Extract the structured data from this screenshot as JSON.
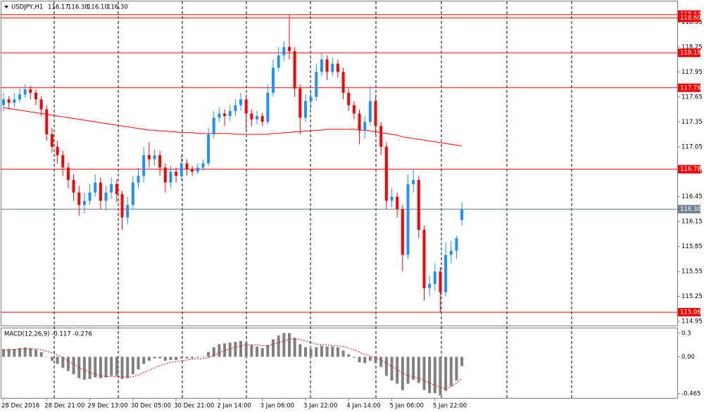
{
  "chart_data": {
    "type": "candlestick",
    "header": {
      "symbol": "USDJPY,H1",
      "ohlc": [
        "116.17",
        "116.38",
        "116.10",
        "116.30"
      ]
    },
    "categories": [
      "28 Dec 2016",
      null,
      null,
      null,
      null,
      null,
      null,
      null,
      "28 Dec 21:00",
      null,
      null,
      null,
      null,
      null,
      null,
      null,
      "29 Dec 13:00",
      null,
      null,
      null,
      null,
      null,
      null,
      null,
      "30 Dec 05:00",
      null,
      null,
      null,
      null,
      null,
      null,
      null,
      "30 Dec 21:00",
      null,
      null,
      null,
      null,
      null,
      null,
      null,
      "2 Jan 14:00",
      null,
      null,
      null,
      null,
      null,
      null,
      null,
      "3 Jan 06:00",
      null,
      null,
      null,
      null,
      null,
      null,
      null,
      "3 Jan 22:00",
      null,
      null,
      null,
      null,
      null,
      null,
      null,
      "4 Jan 14:00",
      null,
      null,
      null,
      null,
      null,
      null,
      null,
      "5 Jan 06:00",
      null,
      null,
      null,
      null,
      null,
      null,
      null,
      "5 Jan 22:00",
      null,
      null,
      null,
      null,
      null
    ],
    "candles": {
      "open": [
        117.55,
        117.62,
        117.58,
        117.62,
        117.68,
        117.74,
        117.7,
        117.62,
        117.5,
        117.2,
        117.05,
        116.95,
        116.8,
        116.65,
        116.5,
        116.35,
        116.4,
        116.5,
        116.62,
        116.4,
        116.5,
        116.6,
        116.48,
        116.2,
        116.35,
        116.62,
        116.7,
        116.95,
        116.9,
        116.95,
        116.8,
        116.62,
        116.75,
        116.7,
        116.85,
        116.78,
        116.75,
        116.8,
        116.85,
        117.2,
        117.4,
        117.45,
        117.42,
        117.48,
        117.55,
        117.62,
        117.45,
        117.38,
        117.42,
        117.35,
        117.7,
        118.0,
        118.15,
        118.25,
        118.2,
        117.75,
        117.4,
        117.6,
        117.65,
        117.95,
        118.1,
        117.95,
        118.05,
        117.95,
        117.7,
        117.55,
        117.45,
        117.25,
        117.35,
        117.6,
        117.3,
        117.05,
        116.4,
        116.45,
        116.3,
        115.75,
        116.6,
        116.65,
        116.05,
        115.35,
        115.4,
        115.55,
        115.3,
        115.75,
        115.8,
        116.17
      ],
      "high": [
        117.7,
        117.66,
        117.7,
        117.75,
        117.8,
        117.78,
        117.74,
        117.66,
        117.55,
        117.28,
        117.12,
        117.0,
        116.86,
        116.72,
        116.58,
        116.5,
        116.6,
        116.72,
        116.68,
        116.58,
        116.68,
        116.66,
        116.52,
        116.45,
        116.7,
        116.8,
        117.05,
        117.1,
        117.02,
        117.0,
        116.85,
        116.82,
        116.8,
        116.95,
        116.9,
        116.82,
        116.85,
        116.9,
        117.28,
        117.48,
        117.52,
        117.5,
        117.55,
        117.62,
        117.7,
        117.66,
        117.5,
        117.48,
        117.46,
        117.8,
        118.1,
        118.25,
        118.32,
        118.64,
        118.25,
        117.8,
        117.68,
        117.72,
        118.05,
        118.18,
        118.15,
        118.12,
        118.1,
        118.0,
        117.75,
        117.6,
        117.5,
        117.42,
        117.78,
        117.65,
        117.35,
        117.1,
        116.55,
        116.5,
        116.35,
        116.72,
        116.78,
        116.7,
        116.1,
        115.5,
        115.65,
        115.6,
        115.9,
        115.92,
        115.98,
        116.38
      ],
      "low": [
        117.48,
        117.5,
        117.52,
        117.58,
        117.64,
        117.62,
        117.55,
        117.42,
        117.12,
        116.98,
        116.85,
        116.7,
        116.55,
        116.4,
        116.22,
        116.25,
        116.35,
        116.45,
        116.3,
        116.28,
        116.42,
        116.38,
        116.05,
        116.12,
        116.3,
        116.55,
        116.62,
        116.8,
        116.82,
        116.7,
        116.5,
        116.55,
        116.62,
        116.65,
        116.7,
        116.7,
        116.72,
        116.76,
        116.82,
        117.15,
        117.35,
        117.3,
        117.36,
        117.42,
        117.48,
        117.25,
        117.3,
        117.32,
        117.3,
        117.32,
        117.65,
        117.95,
        118.08,
        118.1,
        117.65,
        117.2,
        117.35,
        117.5,
        117.6,
        117.9,
        117.85,
        117.9,
        117.88,
        117.62,
        117.48,
        117.38,
        117.08,
        117.15,
        117.3,
        117.2,
        116.95,
        116.3,
        116.32,
        116.2,
        115.55,
        115.7,
        116.5,
        115.95,
        115.2,
        115.25,
        115.32,
        115.06,
        115.25,
        115.65,
        115.7,
        116.1
      ],
      "close": [
        117.62,
        117.58,
        117.62,
        117.68,
        117.74,
        117.7,
        117.62,
        117.5,
        117.2,
        117.05,
        116.95,
        116.8,
        116.65,
        116.5,
        116.35,
        116.4,
        116.5,
        116.62,
        116.4,
        116.5,
        116.6,
        116.48,
        116.2,
        116.35,
        116.62,
        116.7,
        116.95,
        116.9,
        116.95,
        116.8,
        116.62,
        116.75,
        116.7,
        116.85,
        116.78,
        116.75,
        116.8,
        116.85,
        117.2,
        117.4,
        117.45,
        117.42,
        117.48,
        117.55,
        117.62,
        117.45,
        117.38,
        117.42,
        117.35,
        117.7,
        118.0,
        118.15,
        118.25,
        118.2,
        117.75,
        117.4,
        117.6,
        117.65,
        117.95,
        118.1,
        117.95,
        118.05,
        117.95,
        117.7,
        117.55,
        117.45,
        117.25,
        117.35,
        117.6,
        117.3,
        117.05,
        116.4,
        116.45,
        116.3,
        115.75,
        116.6,
        116.65,
        116.05,
        115.35,
        115.4,
        115.55,
        115.3,
        115.75,
        115.8,
        115.95,
        116.3
      ],
      "up_color": "#1e90ff",
      "down_color": "#ff0000"
    },
    "moving_average": {
      "color": "#ff0000",
      "values": [
        117.52,
        117.51,
        117.5,
        117.49,
        117.48,
        117.47,
        117.46,
        117.45,
        117.44,
        117.43,
        117.42,
        117.41,
        117.4,
        117.39,
        117.38,
        117.37,
        117.36,
        117.35,
        117.34,
        117.33,
        117.32,
        117.31,
        117.3,
        117.29,
        117.28,
        117.27,
        117.26,
        117.25,
        117.25,
        117.24,
        117.24,
        117.23,
        117.23,
        117.22,
        117.22,
        117.22,
        117.21,
        117.21,
        117.21,
        117.21,
        117.21,
        117.21,
        117.21,
        117.2,
        117.2,
        117.2,
        117.2,
        117.2,
        117.2,
        117.2,
        117.21,
        117.21,
        117.22,
        117.22,
        117.23,
        117.23,
        117.24,
        117.24,
        117.25,
        117.25,
        117.26,
        117.26,
        117.26,
        117.26,
        117.26,
        117.26,
        117.25,
        117.25,
        117.24,
        117.23,
        117.22,
        117.21,
        117.2,
        117.19,
        117.17,
        117.16,
        117.15,
        117.14,
        117.13,
        117.12,
        117.11,
        117.1,
        117.09,
        117.08,
        117.07,
        117.06
      ]
    },
    "ylim": [
      114.9,
      118.79
    ],
    "yticks": [
      118.55,
      118.25,
      117.95,
      117.65,
      117.35,
      117.05,
      116.75,
      116.45,
      116.15,
      115.85,
      115.55,
      115.25,
      114.95
    ],
    "levels": [
      {
        "value": 118.64,
        "color": "#ff0000"
      },
      {
        "value": 118.6,
        "label": "118.60",
        "color": "#ff0000"
      },
      {
        "value": 118.18,
        "color": "#ff0000"
      },
      {
        "value": 117.76,
        "color": "#ff0000"
      },
      {
        "value": 116.78,
        "color": "#ff0000"
      },
      {
        "value": 116.3,
        "label": "116.30",
        "color": "#708090"
      },
      {
        "value": 115.06,
        "color": "#ff0000"
      }
    ],
    "macd": {
      "label": "MACD(12,26,9) -0.117 -0.276",
      "ylim": [
        -0.52,
        0.36
      ],
      "yticks": [
        0.3,
        {
          "value": 0,
          "label": "0.00"
        },
        -0.465
      ],
      "histogram": {
        "color": "#808080",
        "values": [
          0.1,
          0.1,
          0.1,
          0.11,
          0.12,
          0.11,
          0.09,
          0.06,
          0.0,
          -0.05,
          -0.09,
          -0.14,
          -0.18,
          -0.22,
          -0.27,
          -0.29,
          -0.28,
          -0.26,
          -0.27,
          -0.26,
          -0.24,
          -0.24,
          -0.28,
          -0.27,
          -0.22,
          -0.16,
          -0.09,
          -0.05,
          -0.02,
          -0.02,
          -0.05,
          -0.04,
          -0.04,
          -0.02,
          -0.02,
          -0.02,
          -0.01,
          0.0,
          0.06,
          0.12,
          0.16,
          0.17,
          0.18,
          0.19,
          0.2,
          0.18,
          0.15,
          0.13,
          0.11,
          0.15,
          0.22,
          0.27,
          0.3,
          0.3,
          0.24,
          0.16,
          0.12,
          0.1,
          0.12,
          0.14,
          0.13,
          0.13,
          0.12,
          0.08,
          0.03,
          -0.01,
          -0.07,
          -0.08,
          -0.05,
          -0.08,
          -0.13,
          -0.24,
          -0.3,
          -0.34,
          -0.42,
          -0.34,
          -0.29,
          -0.33,
          -0.42,
          -0.46,
          -0.46,
          -0.49,
          -0.43,
          -0.37,
          -0.3,
          -0.117
        ]
      },
      "signal": {
        "color": "#ff0000",
        "values": [
          0.08,
          0.09,
          0.09,
          0.1,
          0.1,
          0.1,
          0.1,
          0.09,
          0.07,
          0.05,
          0.02,
          -0.01,
          -0.05,
          -0.09,
          -0.13,
          -0.17,
          -0.2,
          -0.22,
          -0.24,
          -0.25,
          -0.25,
          -0.25,
          -0.25,
          -0.26,
          -0.25,
          -0.23,
          -0.2,
          -0.17,
          -0.14,
          -0.11,
          -0.09,
          -0.07,
          -0.06,
          -0.05,
          -0.04,
          -0.03,
          -0.03,
          -0.02,
          -0.01,
          0.02,
          0.05,
          0.08,
          0.1,
          0.12,
          0.14,
          0.15,
          0.15,
          0.15,
          0.14,
          0.14,
          0.16,
          0.18,
          0.2,
          0.22,
          0.23,
          0.22,
          0.2,
          0.18,
          0.16,
          0.15,
          0.15,
          0.14,
          0.14,
          0.13,
          0.11,
          0.09,
          0.06,
          0.03,
          0.01,
          -0.01,
          -0.04,
          -0.08,
          -0.12,
          -0.16,
          -0.21,
          -0.24,
          -0.25,
          -0.27,
          -0.3,
          -0.33,
          -0.36,
          -0.39,
          -0.4,
          -0.38,
          -0.33,
          -0.276
        ]
      }
    }
  }
}
